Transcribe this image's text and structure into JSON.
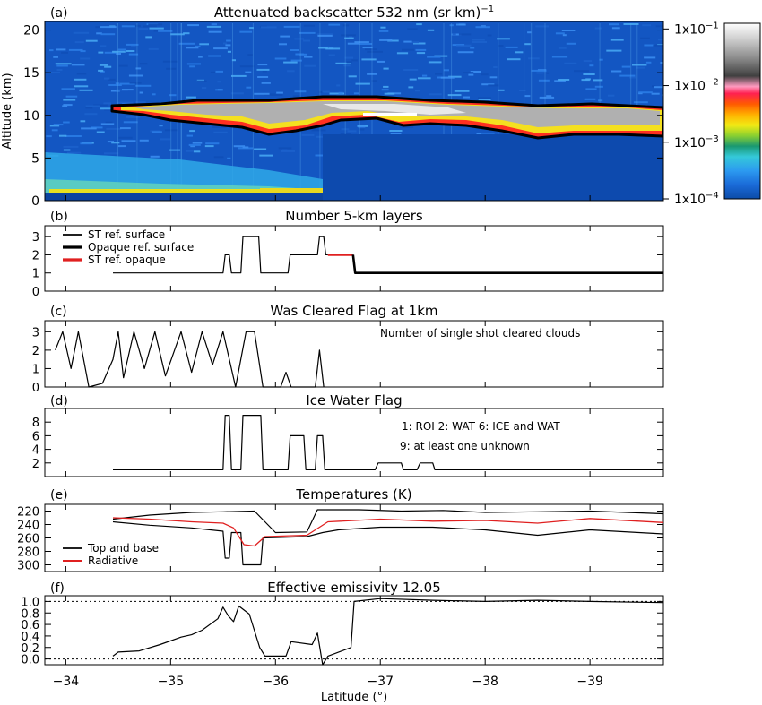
{
  "chart_data": [
    {
      "type": "heatmap",
      "panel_label": "(a)",
      "title": "Attenuated backscatter 532 nm (sr km)",
      "title_superscript": "−1",
      "ylabel": "Altitude (km)",
      "ylim": [
        0,
        21
      ],
      "yticks": [
        "0",
        "5",
        "10",
        "15",
        "20"
      ],
      "colorbar_ticks": [
        {
          "label": "1x10",
          "exp": "−1",
          "value": 0.1
        },
        {
          "label": "1x10",
          "exp": "−2",
          "value": 0.01
        },
        {
          "label": "1x10",
          "exp": "−3",
          "value": 0.001
        },
        {
          "label": "1x10",
          "exp": "−4",
          "value": 0.0001
        }
      ],
      "cloud_top_km": [
        [
          -34.8,
          10.5
        ],
        [
          -35.2,
          10.9
        ],
        [
          -35.6,
          11.0
        ],
        [
          -36.0,
          10.7
        ],
        [
          -36.5,
          11.3
        ],
        [
          -37.0,
          11.4
        ],
        [
          -37.5,
          11.2
        ],
        [
          -38.0,
          11.3
        ],
        [
          -38.5,
          11.0
        ],
        [
          -39.0,
          11.2
        ],
        [
          -39.7,
          10.3
        ]
      ],
      "cloud_base_km": [
        [
          -34.8,
          10.0
        ],
        [
          -35.2,
          9.0
        ],
        [
          -35.6,
          8.8
        ],
        [
          -36.0,
          7.5
        ],
        [
          -36.3,
          7.2
        ],
        [
          -36.6,
          9.0
        ],
        [
          -37.0,
          8.0
        ],
        [
          -37.5,
          8.3
        ],
        [
          -38.0,
          7.8
        ],
        [
          -38.5,
          6.6
        ],
        [
          -39.0,
          7.4
        ],
        [
          -39.7,
          6.8
        ]
      ]
    },
    {
      "type": "line",
      "panel_label": "(b)",
      "title": "Number 5-km layers",
      "yticks": [
        "0",
        "1",
        "2",
        "3"
      ],
      "ylim": [
        0,
        3.6
      ],
      "legend": [
        "ST ref. surface",
        "Opaque ref. surface",
        "ST ref. opaque"
      ],
      "series": [
        {
          "name": "ST ref. surface",
          "points": [
            [
              -34.45,
              1
            ],
            [
              -35.5,
              1
            ],
            [
              -35.52,
              2
            ],
            [
              -35.56,
              2
            ],
            [
              -35.58,
              1
            ],
            [
              -35.67,
              1
            ],
            [
              -35.69,
              3
            ],
            [
              -35.84,
              3
            ],
            [
              -35.86,
              1
            ],
            [
              -36.12,
              1
            ],
            [
              -36.14,
              2
            ],
            [
              -36.4,
              2
            ],
            [
              -36.42,
              3
            ],
            [
              -36.46,
              3
            ],
            [
              -36.48,
              2
            ],
            [
              -36.5,
              2
            ]
          ]
        },
        {
          "name": "ST ref. opaque",
          "points": [
            [
              -36.5,
              2
            ],
            [
              -36.74,
              2
            ]
          ]
        },
        {
          "name": "Opaque ref. surface",
          "points": [
            [
              -36.74,
              2
            ],
            [
              -36.76,
              1
            ],
            [
              -39.7,
              1
            ]
          ]
        }
      ]
    },
    {
      "type": "line",
      "panel_label": "(c)",
      "title": "Was Cleared Flag at 1km",
      "annotation": "Number of single shot cleared clouds",
      "yticks": [
        "0",
        "1",
        "2",
        "3"
      ],
      "ylim": [
        0,
        3.6
      ],
      "series": [
        {
          "name": "",
          "points": [
            [
              -33.9,
              2.0
            ],
            [
              -33.97,
              3.0
            ],
            [
              -34.05,
              1.0
            ],
            [
              -34.12,
              3.0
            ],
            [
              -34.22,
              0.0
            ],
            [
              -34.35,
              0.2
            ],
            [
              -34.45,
              1.5
            ],
            [
              -34.5,
              3.0
            ],
            [
              -34.55,
              0.5
            ],
            [
              -34.65,
              3.0
            ],
            [
              -34.75,
              1.0
            ],
            [
              -34.85,
              3.0
            ],
            [
              -34.95,
              0.6
            ],
            [
              -35.1,
              3.0
            ],
            [
              -35.2,
              0.8
            ],
            [
              -35.3,
              3.0
            ],
            [
              -35.4,
              1.2
            ],
            [
              -35.5,
              3.0
            ],
            [
              -35.62,
              0.0
            ],
            [
              -35.72,
              3.0
            ],
            [
              -35.8,
              3.0
            ],
            [
              -35.88,
              0.0
            ],
            [
              -36.05,
              0.0
            ],
            [
              -36.1,
              0.8
            ],
            [
              -36.15,
              0.0
            ],
            [
              -36.38,
              0.0
            ],
            [
              -36.42,
              2.0
            ],
            [
              -36.46,
              0.0
            ]
          ]
        }
      ]
    },
    {
      "type": "line",
      "panel_label": "(d)",
      "title": "Ice Water Flag",
      "annotation_lines": [
        "1: ROI   2: WAT   6: ICE and WAT",
        "9: at least one unknown"
      ],
      "yticks": [
        "2",
        "4",
        "6",
        "8"
      ],
      "ylim": [
        0,
        10
      ],
      "series": [
        {
          "name": "",
          "points": [
            [
              -34.45,
              1
            ],
            [
              -35.5,
              1
            ],
            [
              -35.52,
              9
            ],
            [
              -35.56,
              9
            ],
            [
              -35.58,
              1
            ],
            [
              -35.67,
              1
            ],
            [
              -35.69,
              9
            ],
            [
              -35.86,
              9
            ],
            [
              -35.88,
              1
            ],
            [
              -36.12,
              1
            ],
            [
              -36.14,
              6
            ],
            [
              -36.27,
              6
            ],
            [
              -36.29,
              1
            ],
            [
              -36.38,
              1
            ],
            [
              -36.4,
              6
            ],
            [
              -36.45,
              6
            ],
            [
              -36.47,
              1
            ],
            [
              -36.95,
              1
            ],
            [
              -36.98,
              2
            ],
            [
              -37.2,
              2
            ],
            [
              -37.22,
              1
            ],
            [
              -37.35,
              1
            ],
            [
              -37.38,
              2
            ],
            [
              -37.5,
              2
            ],
            [
              -37.52,
              1
            ],
            [
              -39.7,
              1
            ]
          ]
        }
      ]
    },
    {
      "type": "line",
      "panel_label": "(e)",
      "title": "Temperatures (K)",
      "yticks": [
        "220",
        "240",
        "260",
        "280",
        "300"
      ],
      "ylim": [
        310,
        210
      ],
      "legend": [
        "Top and base",
        "Radiative"
      ],
      "series": [
        {
          "name": "Top and base",
          "points": [
            [
              -34.45,
              232
            ],
            [
              -34.8,
              226
            ],
            [
              -35.2,
              222
            ],
            [
              -35.5,
              221
            ],
            [
              -35.8,
              220
            ],
            [
              -36.0,
              252
            ],
            [
              -36.3,
              251
            ],
            [
              -36.4,
              218
            ],
            [
              -36.8,
              218
            ],
            [
              -37.2,
              220
            ],
            [
              -37.6,
              219
            ],
            [
              -38.0,
              222
            ],
            [
              -38.5,
              221
            ],
            [
              -39.0,
              220
            ],
            [
              -39.7,
              224
            ]
          ]
        },
        {
          "name": "Top and base",
          "points": [
            [
              -34.45,
              236
            ],
            [
              -34.8,
              241
            ],
            [
              -35.2,
              245
            ],
            [
              -35.5,
              250
            ],
            [
              -35.52,
              290
            ],
            [
              -35.56,
              290
            ],
            [
              -35.58,
              252
            ],
            [
              -35.67,
              252
            ],
            [
              -35.69,
              300
            ],
            [
              -35.86,
              300
            ],
            [
              -35.88,
              260
            ],
            [
              -36.3,
              258
            ],
            [
              -36.45,
              252
            ],
            [
              -36.6,
              248
            ],
            [
              -37.0,
              244
            ],
            [
              -37.5,
              244
            ],
            [
              -38.0,
              248
            ],
            [
              -38.5,
              256
            ],
            [
              -39.0,
              248
            ],
            [
              -39.7,
              254
            ]
          ]
        },
        {
          "name": "Radiative",
          "points": [
            [
              -34.45,
              230
            ],
            [
              -34.8,
              232
            ],
            [
              -35.2,
              236
            ],
            [
              -35.5,
              238
            ],
            [
              -35.6,
              245
            ],
            [
              -35.7,
              270
            ],
            [
              -35.8,
              272
            ],
            [
              -35.9,
              258
            ],
            [
              -36.3,
              256
            ],
            [
              -36.5,
              236
            ],
            [
              -37.0,
              232
            ],
            [
              -37.5,
              235
            ],
            [
              -38.0,
              234
            ],
            [
              -38.5,
              238
            ],
            [
              -39.0,
              231
            ],
            [
              -39.7,
              237
            ]
          ]
        }
      ]
    },
    {
      "type": "line",
      "panel_label": "(f)",
      "title": "Effective emissivity 12.05",
      "yticks": [
        "0.0",
        "0.2",
        "0.4",
        "0.6",
        "0.8",
        "1.0"
      ],
      "ylim": [
        -0.1,
        1.1
      ],
      "reference_lines": [
        0.0,
        1.0
      ],
      "series": [
        {
          "name": "",
          "points": [
            [
              -34.45,
              0.05
            ],
            [
              -34.5,
              0.12
            ],
            [
              -34.7,
              0.14
            ],
            [
              -34.9,
              0.25
            ],
            [
              -35.1,
              0.38
            ],
            [
              -35.2,
              0.42
            ],
            [
              -35.3,
              0.5
            ],
            [
              -35.45,
              0.7
            ],
            [
              -35.5,
              0.9
            ],
            [
              -35.55,
              0.75
            ],
            [
              -35.6,
              0.65
            ],
            [
              -35.65,
              0.92
            ],
            [
              -35.75,
              0.78
            ],
            [
              -35.85,
              0.2
            ],
            [
              -35.9,
              0.05
            ],
            [
              -36.1,
              0.05
            ],
            [
              -36.15,
              0.3
            ],
            [
              -36.35,
              0.25
            ],
            [
              -36.4,
              0.45
            ],
            [
              -36.45,
              -0.1
            ],
            [
              -36.5,
              0.05
            ],
            [
              -36.72,
              0.2
            ],
            [
              -36.75,
              1.0
            ],
            [
              -37.0,
              1.05
            ],
            [
              -37.5,
              1.02
            ],
            [
              -38.0,
              1.0
            ],
            [
              -38.5,
              1.02
            ],
            [
              -39.0,
              1.0
            ],
            [
              -39.7,
              0.98
            ]
          ]
        }
      ]
    }
  ],
  "xaxis": {
    "label": "Latitude (°)",
    "xlim": [
      -33.8,
      -39.7
    ],
    "ticks": [
      -34,
      -35,
      -36,
      -37,
      -38,
      -39
    ],
    "tick_labels": [
      "−34",
      "−35",
      "−36",
      "−37",
      "−38",
      "−39"
    ]
  }
}
